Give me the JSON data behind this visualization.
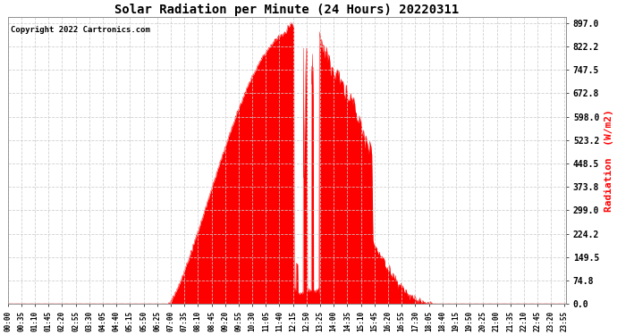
{
  "title": "Solar Radiation per Minute (24 Hours) 20220311",
  "copyright": "Copyright 2022 Cartronics.com",
  "ylabel": "Radiation  (W/m2)",
  "yticks": [
    0.0,
    74.8,
    149.5,
    224.2,
    299.0,
    373.8,
    448.5,
    523.2,
    598.0,
    672.8,
    747.5,
    822.2,
    897.0
  ],
  "ymax": 897.0,
  "ymin": 0.0,
  "fill_color": "#FF0000",
  "line_color": "#FF0000",
  "bg_color": "#FFFFFF",
  "grid_color": "#CCCCCC",
  "title_color": "#000000",
  "copyright_color": "#000000",
  "ylabel_color": "#FF0000",
  "ytick_color": "#000000",
  "xtick_color": "#000000",
  "dashed_line_color": "#FF0000",
  "total_minutes": 1440,
  "tick_interval": 35,
  "sunrise_min": 415,
  "sunset_min": 1095,
  "peak_min": 735
}
